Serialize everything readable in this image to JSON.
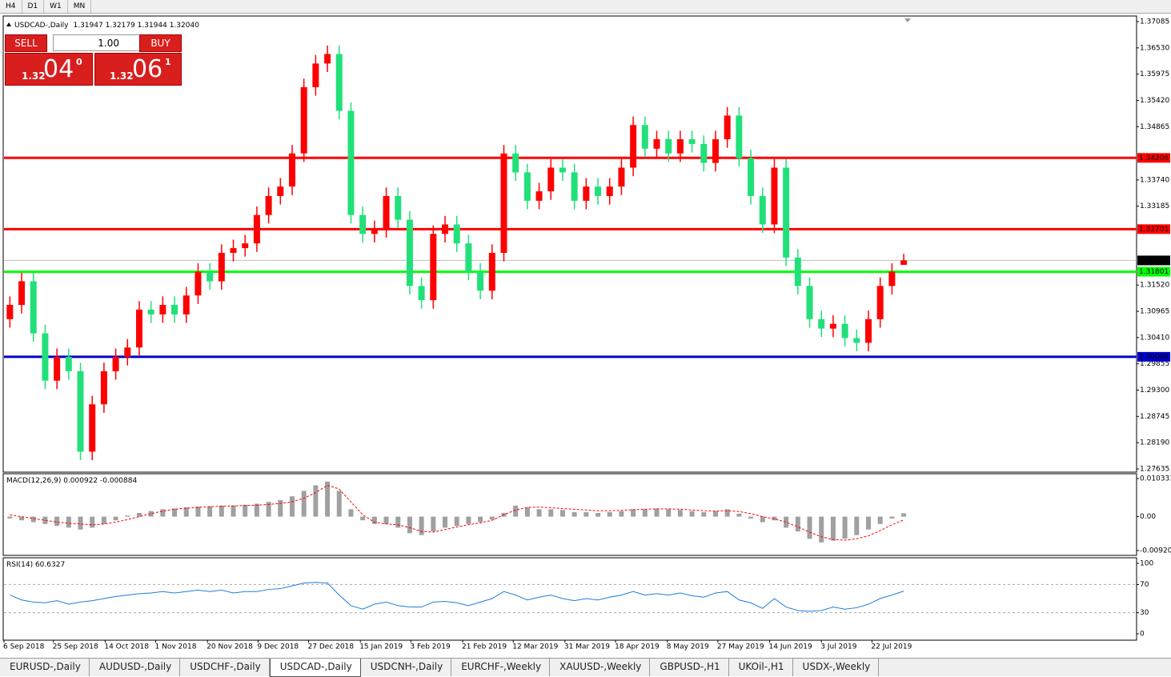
{
  "toolbar": {
    "timeframes": [
      "H4",
      "D1",
      "W1",
      "MN"
    ]
  },
  "trade_panel": {
    "sell": "SELL",
    "buy": "BUY",
    "lots": "1.00",
    "sell_price": {
      "big": "1.32",
      "pips": "04",
      "point": "0"
    },
    "buy_price": {
      "big": "1.32",
      "pips": "06",
      "point": "1"
    }
  },
  "chart_data": [
    {
      "type": "candlestick",
      "title": "USDCAD-,Daily",
      "ohlc_text": "1.31947 1.32179 1.31944 1.32040",
      "up_color": "#ff0000",
      "down_color": "#21e07a",
      "candles": [
        [
          1.308,
          1.3128,
          1.3062,
          1.311
        ],
        [
          1.311,
          1.3178,
          1.3092,
          1.316
        ],
        [
          1.316,
          1.3178,
          1.3032,
          1.305
        ],
        [
          1.305,
          1.3068,
          1.2932,
          1.295
        ],
        [
          1.295,
          1.3018,
          1.2932,
          1.3
        ],
        [
          1.3,
          1.3018,
          1.2952,
          1.297
        ],
        [
          1.297,
          1.2988,
          1.2782,
          1.28
        ],
        [
          1.28,
          1.2918,
          1.2782,
          1.29
        ],
        [
          1.29,
          1.2988,
          1.2882,
          1.297
        ],
        [
          1.297,
          1.3018,
          1.2952,
          1.3
        ],
        [
          1.3,
          1.3038,
          1.2982,
          1.302
        ],
        [
          1.302,
          1.3118,
          1.3002,
          1.31
        ],
        [
          1.31,
          1.3118,
          1.3072,
          1.309
        ],
        [
          1.309,
          1.3128,
          1.3072,
          1.311
        ],
        [
          1.311,
          1.3128,
          1.3072,
          1.309
        ],
        [
          1.309,
          1.3148,
          1.3072,
          1.313
        ],
        [
          1.313,
          1.3198,
          1.3112,
          1.318
        ],
        [
          1.318,
          1.3198,
          1.3142,
          1.316
        ],
        [
          1.316,
          1.3238,
          1.3142,
          1.322
        ],
        [
          1.322,
          1.3248,
          1.3202,
          1.323
        ],
        [
          1.323,
          1.3258,
          1.3212,
          1.324
        ],
        [
          1.324,
          1.3318,
          1.3222,
          1.33
        ],
        [
          1.33,
          1.3358,
          1.3282,
          1.334
        ],
        [
          1.334,
          1.3378,
          1.3322,
          1.336
        ],
        [
          1.336,
          1.3448,
          1.3342,
          1.343
        ],
        [
          1.343,
          1.3588,
          1.3412,
          1.357
        ],
        [
          1.357,
          1.3638,
          1.3552,
          1.362
        ],
        [
          1.362,
          1.3658,
          1.3602,
          1.364
        ],
        [
          1.364,
          1.3658,
          1.3502,
          1.352
        ],
        [
          1.352,
          1.3538,
          1.3282,
          1.33
        ],
        [
          1.33,
          1.3318,
          1.3242,
          1.326
        ],
        [
          1.326,
          1.3288,
          1.3242,
          1.327
        ],
        [
          1.327,
          1.3358,
          1.3252,
          1.334
        ],
        [
          1.334,
          1.3358,
          1.3272,
          1.329
        ],
        [
          1.329,
          1.3308,
          1.3132,
          1.315
        ],
        [
          1.315,
          1.3168,
          1.3102,
          1.312
        ],
        [
          1.312,
          1.3278,
          1.3102,
          1.326
        ],
        [
          1.326,
          1.3298,
          1.3242,
          1.328
        ],
        [
          1.328,
          1.3298,
          1.3222,
          1.324
        ],
        [
          1.324,
          1.3258,
          1.3162,
          1.318
        ],
        [
          1.318,
          1.3198,
          1.3122,
          1.314
        ],
        [
          1.314,
          1.3238,
          1.3122,
          1.322
        ],
        [
          1.322,
          1.3448,
          1.3202,
          1.343
        ],
        [
          1.343,
          1.3448,
          1.3372,
          1.339
        ],
        [
          1.339,
          1.3408,
          1.3312,
          1.333
        ],
        [
          1.333,
          1.3368,
          1.3312,
          1.335
        ],
        [
          1.335,
          1.3418,
          1.3332,
          1.34
        ],
        [
          1.34,
          1.3418,
          1.3372,
          1.339
        ],
        [
          1.339,
          1.3408,
          1.3312,
          1.333
        ],
        [
          1.333,
          1.3378,
          1.3312,
          1.336
        ],
        [
          1.336,
          1.3378,
          1.3322,
          1.334
        ],
        [
          1.334,
          1.3378,
          1.3322,
          1.336
        ],
        [
          1.336,
          1.3418,
          1.3342,
          1.34
        ],
        [
          1.34,
          1.3508,
          1.3382,
          1.349
        ],
        [
          1.349,
          1.3508,
          1.3422,
          1.344
        ],
        [
          1.344,
          1.3478,
          1.3422,
          1.346
        ],
        [
          1.346,
          1.3478,
          1.3412,
          1.343
        ],
        [
          1.343,
          1.3478,
          1.3412,
          1.346
        ],
        [
          1.346,
          1.3478,
          1.3432,
          1.345
        ],
        [
          1.345,
          1.3468,
          1.3392,
          1.341
        ],
        [
          1.341,
          1.3478,
          1.3392,
          1.346
        ],
        [
          1.346,
          1.3528,
          1.3442,
          1.351
        ],
        [
          1.351,
          1.3528,
          1.3402,
          1.342
        ],
        [
          1.342,
          1.3438,
          1.3322,
          1.334
        ],
        [
          1.334,
          1.3358,
          1.3262,
          1.328
        ],
        [
          1.328,
          1.3418,
          1.3262,
          1.34
        ],
        [
          1.34,
          1.3418,
          1.3192,
          1.321
        ],
        [
          1.321,
          1.3228,
          1.3132,
          1.315
        ],
        [
          1.315,
          1.3168,
          1.3062,
          1.308
        ],
        [
          1.308,
          1.3098,
          1.3042,
          1.306
        ],
        [
          1.306,
          1.3088,
          1.3042,
          1.307
        ],
        [
          1.307,
          1.3088,
          1.3022,
          1.304
        ],
        [
          1.304,
          1.3058,
          1.3012,
          1.303
        ],
        [
          1.303,
          1.3098,
          1.3012,
          1.308
        ],
        [
          1.308,
          1.3168,
          1.3062,
          1.315
        ],
        [
          1.315,
          1.3198,
          1.3132,
          1.318
        ],
        [
          1.31947,
          1.32179,
          1.31944,
          1.3204
        ]
      ],
      "ylim": [
        1.27635,
        1.37085
      ],
      "yticks": [
        1.37085,
        {
          "value": 1.3653,
          "label": "1.36530"
        },
        1.35975,
        {
          "value": 1.3542,
          "label": "1.35420"
        },
        1.34865,
        {
          "value": 1.3374,
          "label": "1.33740"
        },
        1.33185,
        {
          "value": 1.3152,
          "label": "1.31520"
        },
        1.30965,
        {
          "value": 1.3041,
          "label": "1.30410"
        },
        1.29855,
        {
          "value": 1.293,
          "label": "1.29300"
        },
        1.28745,
        {
          "value": 1.2819,
          "label": "1.28190"
        },
        1.27635
      ],
      "xlim": [
        0,
        96.3
      ],
      "xticks": [
        {
          "value": 0,
          "label": "6 Sep 2018"
        },
        {
          "value": 4.2,
          "label": "25 Sep 2018"
        },
        {
          "value": 8.6,
          "label": "14 Oct 2018"
        },
        {
          "value": 12.9,
          "label": "1 Nov 2018"
        },
        {
          "value": 17.3,
          "label": "20 Nov 2018"
        },
        {
          "value": 21.6,
          "label": "9 Dec 2018"
        },
        {
          "value": 25.9,
          "label": "27 Dec 2018"
        },
        {
          "value": 30.3,
          "label": "15 Jan 2019"
        },
        {
          "value": 34.6,
          "label": "3 Feb 2019"
        },
        {
          "value": 39,
          "label": "21 Feb 2019"
        },
        {
          "value": 43.3,
          "label": "12 Mar 2019"
        },
        {
          "value": 47.7,
          "label": "31 Mar 2019"
        },
        {
          "value": 52,
          "label": "18 Apr 2019"
        },
        {
          "value": 56.4,
          "label": "8 May 2019"
        },
        {
          "value": 60.7,
          "label": "27 May 2019"
        },
        {
          "value": 65.1,
          "label": "14 Jun 2019"
        },
        {
          "value": 69.5,
          "label": "3 Jul 2019"
        },
        {
          "value": 73.8,
          "label": "22 Jul 2019"
        }
      ],
      "levels": [
        {
          "value": 1.34206,
          "color": "#ff0000"
        },
        {
          "value": 1.32701,
          "color": "#ff0000"
        },
        {
          "value": 1.31801,
          "color": "#00ff00"
        },
        {
          "value": 1.30004,
          "color": "#0000cc"
        }
      ],
      "current": {
        "value": 1.3204,
        "label": "1.32040"
      }
    },
    {
      "type": "macd",
      "title": "MACD(12,26,9) 0.000922 -0.000884",
      "hist_color": "#a0a0a0",
      "signal_color": "#ff0000",
      "histogram": [
        -0.0005,
        -0.001,
        -0.0015,
        -0.002,
        -0.0025,
        -0.003,
        -0.0035,
        -0.003,
        -0.002,
        -0.001,
        0.0003,
        0.001,
        0.0015,
        0.002,
        0.0022,
        0.0025,
        0.0027,
        0.0028,
        0.003,
        0.003,
        0.0032,
        0.0035,
        0.004,
        0.0045,
        0.0055,
        0.007,
        0.0085,
        0.0095,
        0.007,
        0.002,
        -0.001,
        -0.002,
        -0.002,
        -0.003,
        -0.0045,
        -0.005,
        -0.004,
        -0.003,
        -0.0025,
        -0.002,
        -0.0015,
        -0.0008,
        0.001,
        0.003,
        0.0025,
        0.002,
        0.002,
        0.0018,
        0.0012,
        0.0012,
        0.001,
        0.0012,
        0.0015,
        0.002,
        0.002,
        0.0022,
        0.002,
        0.0018,
        0.0015,
        0.0012,
        0.0015,
        0.002,
        0.0008,
        -0.0005,
        -0.0015,
        -0.001,
        -0.003,
        -0.004,
        -0.006,
        -0.007,
        -0.0065,
        -0.006,
        -0.005,
        -0.0035,
        -0.002,
        -0.0005,
        0.000922
      ],
      "signal": [
        0.0005,
        0,
        -0.0005,
        -0.001,
        -0.0015,
        -0.0018,
        -0.002,
        -0.0022,
        -0.002,
        -0.0015,
        -0.0008,
        0,
        0.0008,
        0.0015,
        0.002,
        0.0023,
        0.0025,
        0.0027,
        0.0028,
        0.0029,
        0.003,
        0.0031,
        0.0033,
        0.0036,
        0.004,
        0.005,
        0.0065,
        0.0085,
        0.0075,
        0.004,
        0.0005,
        -0.0015,
        -0.002,
        -0.0022,
        -0.003,
        -0.004,
        -0.0042,
        -0.0035,
        -0.0028,
        -0.0022,
        -0.0017,
        -0.001,
        0.0005,
        0.0018,
        0.0025,
        0.0026,
        0.0024,
        0.0022,
        0.002,
        0.0018,
        0.0016,
        0.0016,
        0.0017,
        0.0019,
        0.002,
        0.0021,
        0.0021,
        0.002,
        0.0018,
        0.0016,
        0.0015,
        0.0016,
        0.0014,
        0.0008,
        0,
        -0.0006,
        -0.0015,
        -0.0028,
        -0.0042,
        -0.0055,
        -0.0062,
        -0.0064,
        -0.006,
        -0.0052,
        -0.0038,
        -0.0022,
        -0.000884
      ],
      "ylim": [
        -0.009203,
        0.010331
      ],
      "yticks": [
        0.010331,
        {
          "value": 0,
          "label": "0.00"
        },
        -0.009203
      ]
    },
    {
      "type": "rsi",
      "title": "RSI(14) 60.6327",
      "color": "#1e7fd8",
      "values": [
        55,
        48,
        45,
        44,
        47,
        42,
        45,
        47,
        50,
        53,
        55,
        57,
        58,
        60,
        58,
        60,
        62,
        60,
        62,
        58,
        60,
        60,
        63,
        64,
        68,
        72,
        73,
        72,
        55,
        40,
        35,
        42,
        45,
        40,
        38,
        38,
        45,
        46,
        44,
        40,
        45,
        50,
        60,
        55,
        48,
        52,
        55,
        50,
        47,
        50,
        48,
        52,
        55,
        60,
        55,
        57,
        55,
        58,
        54,
        52,
        58,
        60,
        48,
        44,
        36,
        50,
        38,
        33,
        32,
        33,
        38,
        35,
        37,
        42,
        50,
        55,
        60.6327
      ],
      "ylim": [
        0,
        100
      ],
      "yticks": [
        0,
        30,
        70,
        100
      ]
    }
  ],
  "tabs": [
    "EURUSD-,Daily",
    "AUDUSD-,Daily",
    "USDCHF-,Daily",
    "USDCAD-,Daily",
    "USDCNH-,Daily",
    "EURCHF-,Weekly",
    "XAUUSD-,Weekly",
    "GBPUSD-,H1",
    "UKOil-,H1",
    "USDX-,Weekly"
  ],
  "active_tab": 3
}
